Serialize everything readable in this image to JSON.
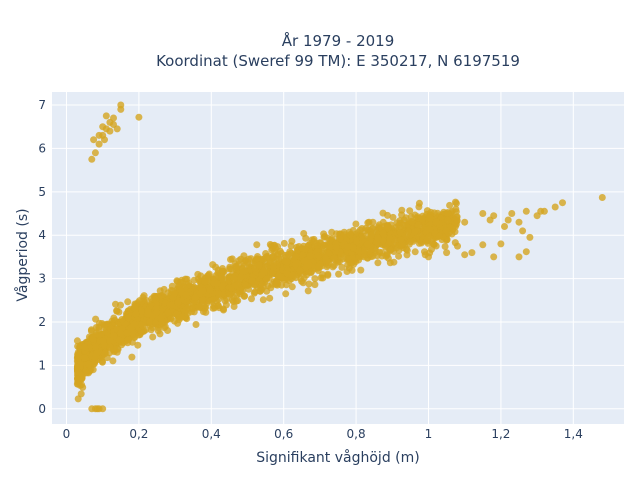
{
  "chart_data": {
    "type": "scatter",
    "title_lines": [
      "År 1979 - 2019",
      "Koordinat (Sweref 99 TM): E 350217, N 6197519"
    ],
    "xlabel": "Signifikant våghöjd (m)",
    "ylabel": "Vågperiod (s)",
    "xlim": [
      -0.04,
      1.54
    ],
    "ylim": [
      -0.35,
      7.3
    ],
    "x_ticks": [
      0,
      0.2,
      0.4,
      0.6,
      0.8,
      1,
      1.2,
      1.4
    ],
    "x_tick_labels": [
      "0",
      "0,2",
      "0,4",
      "0,6",
      "0,8",
      "1",
      "1,2",
      "1,4"
    ],
    "y_ticks": [
      0,
      1,
      2,
      3,
      4,
      5,
      6,
      7
    ],
    "y_tick_labels": [
      "0",
      "1",
      "2",
      "3",
      "4",
      "5",
      "6",
      "7"
    ],
    "grid": true,
    "colors": {
      "background": "#e5ecf6",
      "grid": "#ffffff",
      "marker": "#d4a520"
    },
    "outlier_points": [
      [
        0.07,
        0.0
      ],
      [
        0.08,
        0.0
      ],
      [
        0.09,
        0.0
      ],
      [
        0.1,
        0.0
      ],
      [
        0.085,
        0.0
      ],
      [
        0.07,
        5.75
      ],
      [
        0.08,
        5.9
      ],
      [
        0.075,
        6.2
      ],
      [
        0.09,
        6.1
      ],
      [
        0.1,
        6.3
      ],
      [
        0.11,
        6.45
      ],
      [
        0.12,
        6.6
      ],
      [
        0.11,
        6.75
      ],
      [
        0.13,
        6.55
      ],
      [
        0.15,
        6.9
      ],
      [
        0.15,
        7.0
      ],
      [
        0.14,
        6.45
      ],
      [
        0.2,
        6.72
      ],
      [
        0.1,
        6.5
      ],
      [
        0.09,
        6.3
      ],
      [
        0.12,
        6.4
      ],
      [
        0.105,
        6.2
      ],
      [
        0.13,
        6.7
      ],
      [
        0.95,
        3.85
      ],
      [
        1.0,
        3.95
      ],
      [
        1.05,
        4.1
      ],
      [
        1.08,
        3.75
      ],
      [
        1.1,
        4.3
      ],
      [
        1.12,
        3.6
      ],
      [
        1.15,
        4.5
      ],
      [
        1.17,
        4.35
      ],
      [
        1.18,
        4.45
      ],
      [
        1.2,
        3.8
      ],
      [
        1.21,
        4.2
      ],
      [
        1.22,
        4.35
      ],
      [
        1.23,
        4.5
      ],
      [
        1.25,
        4.3
      ],
      [
        1.26,
        4.1
      ],
      [
        1.27,
        4.55
      ],
      [
        1.28,
        3.95
      ],
      [
        1.25,
        3.5
      ],
      [
        1.27,
        3.62
      ],
      [
        1.3,
        4.45
      ],
      [
        1.31,
        4.55
      ],
      [
        1.32,
        4.55
      ],
      [
        1.35,
        4.65
      ],
      [
        1.37,
        4.75
      ],
      [
        1.48,
        4.87
      ],
      [
        1.18,
        3.5
      ],
      [
        1.15,
        3.78
      ],
      [
        1.1,
        3.55
      ],
      [
        1.05,
        3.6
      ],
      [
        1.0,
        3.5
      ]
    ]
  }
}
